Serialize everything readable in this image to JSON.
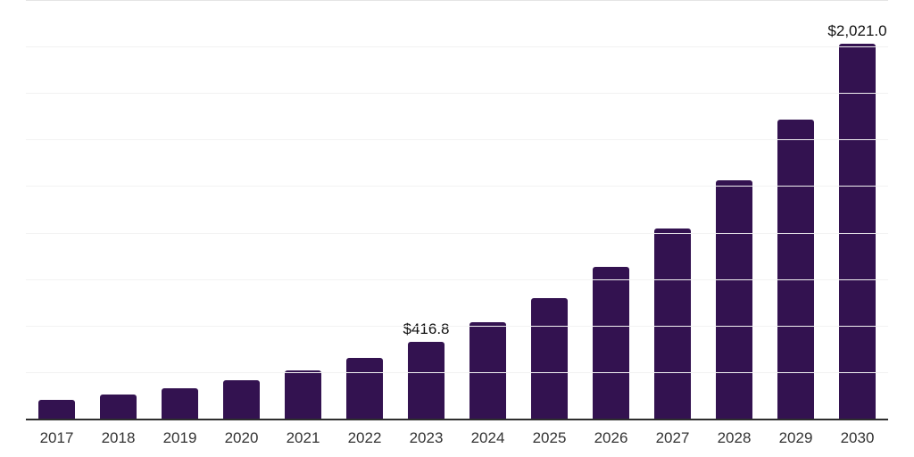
{
  "chart_data": {
    "type": "bar",
    "title": "",
    "xlabel": "",
    "ylabel": "",
    "ylim": [
      0,
      2250
    ],
    "ytick_step": 250,
    "grid": "horizontal-only",
    "legend": "none",
    "y_axis_tick_labels_visible": false,
    "colors": {
      "bar_color": "#331250",
      "axis_line_color": "#2e2e2e",
      "gridline_color": "#f2f2f2",
      "top_line_color": "#e4e4e4",
      "tick_label_color": "#333333",
      "value_label_color": "#111111",
      "background": "#ffffff"
    },
    "categories": [
      "2017",
      "2018",
      "2019",
      "2020",
      "2021",
      "2022",
      "2023",
      "2024",
      "2025",
      "2026",
      "2027",
      "2028",
      "2029",
      "2030"
    ],
    "values": [
      107.8,
      135.0,
      169.2,
      212.0,
      265.6,
      332.7,
      416.8,
      522.2,
      654.2,
      819.7,
      1026.9,
      1286.5,
      1611.8,
      2021.0
    ],
    "points": [
      {
        "category": "2017",
        "value": 107.8,
        "label": ""
      },
      {
        "category": "2018",
        "value": 135.0,
        "label": ""
      },
      {
        "category": "2019",
        "value": 169.2,
        "label": ""
      },
      {
        "category": "2020",
        "value": 212.0,
        "label": ""
      },
      {
        "category": "2021",
        "value": 265.6,
        "label": ""
      },
      {
        "category": "2022",
        "value": 332.7,
        "label": ""
      },
      {
        "category": "2023",
        "value": 416.8,
        "label": "$416.8"
      },
      {
        "category": "2024",
        "value": 522.2,
        "label": ""
      },
      {
        "category": "2025",
        "value": 654.2,
        "label": ""
      },
      {
        "category": "2026",
        "value": 819.7,
        "label": ""
      },
      {
        "category": "2027",
        "value": 1026.9,
        "label": ""
      },
      {
        "category": "2028",
        "value": 1286.5,
        "label": ""
      },
      {
        "category": "2029",
        "value": 1611.8,
        "label": ""
      },
      {
        "category": "2030",
        "value": 2021.0,
        "label": "$2,021.0"
      }
    ],
    "annotations": [
      {
        "text": "$416.8",
        "attached_to": "2023"
      },
      {
        "text": "$2,021.0",
        "attached_to": "2030"
      }
    ]
  }
}
